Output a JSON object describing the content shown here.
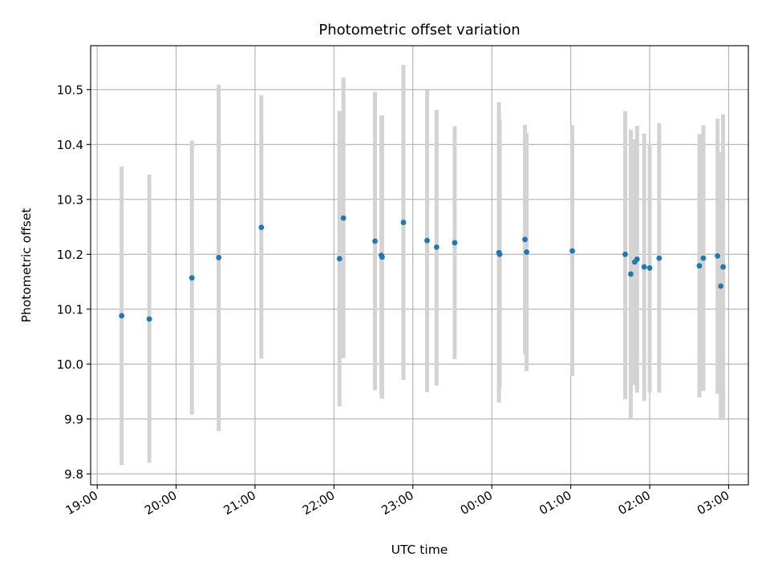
{
  "chart_data": {
    "type": "scatter",
    "title": "Photometric offset variation",
    "xlabel": "UTC time",
    "ylabel": "Photometric offset",
    "grid": true,
    "x_unit": "hours after 19:00 UTC",
    "xlim": [
      -0.083,
      8.25
    ],
    "ylim": [
      9.78,
      10.58
    ],
    "x_ticks": [
      {
        "value": 0,
        "label": "19:00"
      },
      {
        "value": 1,
        "label": "20:00"
      },
      {
        "value": 2,
        "label": "21:00"
      },
      {
        "value": 3,
        "label": "22:00"
      },
      {
        "value": 4,
        "label": "23:00"
      },
      {
        "value": 5,
        "label": "00:00"
      },
      {
        "value": 6,
        "label": "01:00"
      },
      {
        "value": 7,
        "label": "02:00"
      },
      {
        "value": 8,
        "label": "03:00"
      }
    ],
    "y_ticks": [
      {
        "value": 9.8,
        "label": "9.8"
      },
      {
        "value": 9.9,
        "label": "9.9"
      },
      {
        "value": 10.0,
        "label": "10.0"
      },
      {
        "value": 10.1,
        "label": "10.1"
      },
      {
        "value": 10.2,
        "label": "10.2"
      },
      {
        "value": 10.3,
        "label": "10.3"
      },
      {
        "value": 10.4,
        "label": "10.4"
      },
      {
        "value": 10.5,
        "label": "10.5"
      }
    ],
    "colors": {
      "point": "#1f77b4",
      "errorbar": "#d3d3d3",
      "grid": "#b0b0b0"
    },
    "points": [
      {
        "x": 0.31,
        "y": 10.088,
        "lo": 9.816,
        "hi": 10.36
      },
      {
        "x": 0.66,
        "y": 10.082,
        "lo": 9.82,
        "hi": 10.345
      },
      {
        "x": 1.2,
        "y": 10.157,
        "lo": 9.908,
        "hi": 10.407
      },
      {
        "x": 1.54,
        "y": 10.194,
        "lo": 9.878,
        "hi": 10.509
      },
      {
        "x": 2.08,
        "y": 10.249,
        "lo": 10.01,
        "hi": 10.49
      },
      {
        "x": 3.07,
        "y": 10.192,
        "lo": 9.923,
        "hi": 10.461
      },
      {
        "x": 3.12,
        "y": 10.266,
        "lo": 10.011,
        "hi": 10.522
      },
      {
        "x": 3.52,
        "y": 10.224,
        "lo": 9.952,
        "hi": 10.496
      },
      {
        "x": 3.6,
        "y": 10.198,
        "lo": 9.943,
        "hi": 10.453
      },
      {
        "x": 3.61,
        "y": 10.195,
        "lo": 9.937,
        "hi": 10.453
      },
      {
        "x": 3.88,
        "y": 10.258,
        "lo": 9.971,
        "hi": 10.545
      },
      {
        "x": 4.18,
        "y": 10.225,
        "lo": 9.949,
        "hi": 10.5
      },
      {
        "x": 4.3,
        "y": 10.213,
        "lo": 9.961,
        "hi": 10.463
      },
      {
        "x": 4.53,
        "y": 10.221,
        "lo": 10.009,
        "hi": 10.433
      },
      {
        "x": 5.09,
        "y": 10.203,
        "lo": 9.93,
        "hi": 10.477
      },
      {
        "x": 5.1,
        "y": 10.2,
        "lo": 9.955,
        "hi": 10.445
      },
      {
        "x": 5.42,
        "y": 10.227,
        "lo": 10.018,
        "hi": 10.436
      },
      {
        "x": 5.44,
        "y": 10.204,
        "lo": 9.987,
        "hi": 10.421
      },
      {
        "x": 6.02,
        "y": 10.206,
        "lo": 9.978,
        "hi": 10.435
      },
      {
        "x": 6.69,
        "y": 10.2,
        "lo": 9.936,
        "hi": 10.461
      },
      {
        "x": 6.76,
        "y": 10.164,
        "lo": 9.9,
        "hi": 10.427
      },
      {
        "x": 6.81,
        "y": 10.186,
        "lo": 9.962,
        "hi": 10.41
      },
      {
        "x": 6.84,
        "y": 10.191,
        "lo": 9.948,
        "hi": 10.434
      },
      {
        "x": 6.93,
        "y": 10.177,
        "lo": 9.933,
        "hi": 10.42
      },
      {
        "x": 7.0,
        "y": 10.175,
        "lo": 9.948,
        "hi": 10.401
      },
      {
        "x": 7.12,
        "y": 10.193,
        "lo": 9.948,
        "hi": 10.439
      },
      {
        "x": 7.63,
        "y": 10.179,
        "lo": 9.939,
        "hi": 10.419
      },
      {
        "x": 7.68,
        "y": 10.193,
        "lo": 9.951,
        "hi": 10.435
      },
      {
        "x": 7.86,
        "y": 10.197,
        "lo": 9.946,
        "hi": 10.447
      },
      {
        "x": 7.9,
        "y": 10.142,
        "lo": 9.898,
        "hi": 10.386
      },
      {
        "x": 7.93,
        "y": 10.177,
        "lo": 9.898,
        "hi": 10.455
      }
    ]
  }
}
